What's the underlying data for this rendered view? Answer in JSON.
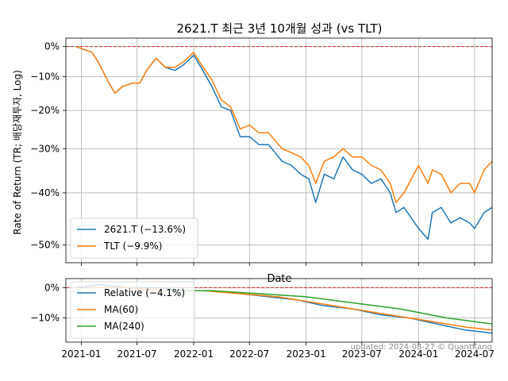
{
  "chart_data": [
    {
      "type": "line",
      "title": "2621.T 최근 3년 10개월 성과 (vs TLT)",
      "xlabel": "Date",
      "ylabel": "Rate of Return (TR; 배당재투자, Log)",
      "y_scale": "log",
      "grid": true,
      "legend": "lower-left",
      "x_range": [
        "2020-11-12",
        "2024-08-27"
      ],
      "y_tick_labels": [
        "0%",
        "−10%",
        "−20%",
        "−30%",
        "−40%",
        "−50%"
      ],
      "y_tick_values": [
        0,
        -10,
        -20,
        -30,
        -40,
        -50
      ],
      "ylim": [
        -53,
        3
      ],
      "reference_line": {
        "y": 0,
        "color": "#d62728",
        "style": "dashed"
      },
      "series": [
        {
          "name": "2621.T (−13.6%)",
          "color": "#1f77b4",
          "points": [
            [
              "2020-12-15",
              0
            ],
            [
              "2021-01-10",
              -1
            ],
            [
              "2021-02-05",
              -2
            ],
            [
              "2021-03-01",
              -6
            ],
            [
              "2021-04-01",
              -12
            ],
            [
              "2021-04-20",
              -15
            ],
            [
              "2021-05-15",
              -13
            ],
            [
              "2021-06-15",
              -12
            ],
            [
              "2021-07-10",
              -12
            ],
            [
              "2021-08-01",
              -8
            ],
            [
              "2021-09-01",
              -4
            ],
            [
              "2021-10-01",
              -7
            ],
            [
              "2021-11-01",
              -8
            ],
            [
              "2021-12-01",
              -6
            ],
            [
              "2022-01-01",
              -3
            ],
            [
              "2022-01-25",
              -7
            ],
            [
              "2022-03-01",
              -13
            ],
            [
              "2022-04-01",
              -19
            ],
            [
              "2022-05-01",
              -20
            ],
            [
              "2022-06-01",
              -27
            ],
            [
              "2022-07-01",
              -27
            ],
            [
              "2022-08-01",
              -29
            ],
            [
              "2022-09-01",
              -29
            ],
            [
              "2022-10-15",
              -33
            ],
            [
              "2022-11-15",
              -34
            ],
            [
              "2022-12-15",
              -36
            ],
            [
              "2023-01-10",
              -37
            ],
            [
              "2023-02-01",
              -42
            ],
            [
              "2023-03-01",
              -36
            ],
            [
              "2023-04-01",
              -37
            ],
            [
              "2023-05-01",
              -32
            ],
            [
              "2023-06-01",
              -35
            ],
            [
              "2023-07-01",
              -36
            ],
            [
              "2023-08-01",
              -38
            ],
            [
              "2023-09-01",
              -37
            ],
            [
              "2023-10-01",
              -40
            ],
            [
              "2023-10-20",
              -44
            ],
            [
              "2023-11-15",
              -43
            ],
            [
              "2024-01-01",
              -47
            ],
            [
              "2024-02-01",
              -49
            ],
            [
              "2024-02-15",
              -44
            ],
            [
              "2024-03-15",
              -43
            ],
            [
              "2024-04-15",
              -46
            ],
            [
              "2024-05-15",
              -45
            ],
            [
              "2024-06-15",
              -46
            ],
            [
              "2024-07-01",
              -47
            ],
            [
              "2024-08-01",
              -44
            ],
            [
              "2024-08-27",
              -43
            ]
          ]
        },
        {
          "name": "TLT (−9.9%)",
          "color": "#ff7f0e",
          "points": [
            [
              "2020-12-15",
              0
            ],
            [
              "2021-01-10",
              -1
            ],
            [
              "2021-02-05",
              -2
            ],
            [
              "2021-03-01",
              -6
            ],
            [
              "2021-04-01",
              -12
            ],
            [
              "2021-04-20",
              -15
            ],
            [
              "2021-05-15",
              -13
            ],
            [
              "2021-06-15",
              -12
            ],
            [
              "2021-07-10",
              -12
            ],
            [
              "2021-08-01",
              -8
            ],
            [
              "2021-09-01",
              -4
            ],
            [
              "2021-10-01",
              -7
            ],
            [
              "2021-11-01",
              -7
            ],
            [
              "2021-12-01",
              -5
            ],
            [
              "2022-01-01",
              -2
            ],
            [
              "2022-01-25",
              -6
            ],
            [
              "2022-03-01",
              -11
            ],
            [
              "2022-04-01",
              -17
            ],
            [
              "2022-05-01",
              -19
            ],
            [
              "2022-06-01",
              -25
            ],
            [
              "2022-07-01",
              -24
            ],
            [
              "2022-08-01",
              -26
            ],
            [
              "2022-09-01",
              -26
            ],
            [
              "2022-10-15",
              -30
            ],
            [
              "2022-11-15",
              -31
            ],
            [
              "2022-12-15",
              -32
            ],
            [
              "2023-01-10",
              -34
            ],
            [
              "2023-02-01",
              -38
            ],
            [
              "2023-03-01",
              -33
            ],
            [
              "2023-04-01",
              -32
            ],
            [
              "2023-05-01",
              -30
            ],
            [
              "2023-06-01",
              -32
            ],
            [
              "2023-07-01",
              -32
            ],
            [
              "2023-08-01",
              -34
            ],
            [
              "2023-09-01",
              -35
            ],
            [
              "2023-10-01",
              -38
            ],
            [
              "2023-10-20",
              -42
            ],
            [
              "2023-11-15",
              -40
            ],
            [
              "2024-01-01",
              -34
            ],
            [
              "2024-02-01",
              -38
            ],
            [
              "2024-02-15",
              -35
            ],
            [
              "2024-03-15",
              -36
            ],
            [
              "2024-04-15",
              -40
            ],
            [
              "2024-05-15",
              -38
            ],
            [
              "2024-06-15",
              -38
            ],
            [
              "2024-07-01",
              -40
            ],
            [
              "2024-08-01",
              -35
            ],
            [
              "2024-08-27",
              -33
            ]
          ]
        }
      ]
    },
    {
      "type": "line",
      "xlabel": "Date",
      "grid": true,
      "legend": "upper-left",
      "x_range": [
        "2020-11-12",
        "2024-08-27"
      ],
      "x_tick_labels": [
        "2021-01",
        "2021-07",
        "2022-01",
        "2022-07",
        "2023-01",
        "2023-07",
        "2024-01",
        "2024-07"
      ],
      "x_tick_values": [
        "2021-01-01",
        "2021-07-01",
        "2022-01-01",
        "2022-07-01",
        "2023-01-01",
        "2023-07-01",
        "2024-01-01",
        "2024-07-01"
      ],
      "y_tick_labels": [
        "0%",
        "−10%"
      ],
      "y_tick_values": [
        0,
        -10
      ],
      "ylim": [
        -18,
        3
      ],
      "reference_line": {
        "y": 0,
        "color": "#d62728",
        "style": "dashed"
      },
      "series": [
        {
          "name": "Relative (−4.1%)",
          "color": "#1f77b4",
          "points": [
            [
              "2020-12-15",
              0
            ],
            [
              "2021-03-01",
              1
            ],
            [
              "2021-06-01",
              0
            ],
            [
              "2021-09-01",
              0
            ],
            [
              "2021-12-01",
              -1
            ],
            [
              "2022-03-01",
              -1
            ],
            [
              "2022-06-01",
              -2
            ],
            [
              "2022-09-01",
              -3
            ],
            [
              "2022-12-01",
              -4
            ],
            [
              "2023-03-01",
              -6
            ],
            [
              "2023-06-01",
              -7
            ],
            [
              "2023-09-01",
              -9
            ],
            [
              "2023-12-01",
              -10
            ],
            [
              "2024-03-01",
              -12
            ],
            [
              "2024-06-01",
              -14
            ],
            [
              "2024-08-27",
              -15
            ]
          ]
        },
        {
          "name": "MA(60)",
          "color": "#ff7f0e",
          "points": [
            [
              "2021-02-01",
              0
            ],
            [
              "2021-06-01",
              0
            ],
            [
              "2021-10-01",
              -1
            ],
            [
              "2022-02-01",
              -1
            ],
            [
              "2022-06-01",
              -2
            ],
            [
              "2022-10-01",
              -3
            ],
            [
              "2023-02-01",
              -5
            ],
            [
              "2023-06-01",
              -7
            ],
            [
              "2023-10-01",
              -9
            ],
            [
              "2024-02-01",
              -11
            ],
            [
              "2024-06-01",
              -13
            ],
            [
              "2024-08-27",
              -14
            ]
          ]
        },
        {
          "name": "MA(240)",
          "color": "#2ca02c",
          "points": [
            [
              "2021-10-01",
              -1
            ],
            [
              "2022-03-01",
              -1
            ],
            [
              "2022-08-01",
              -2
            ],
            [
              "2023-01-01",
              -3
            ],
            [
              "2023-06-01",
              -5
            ],
            [
              "2023-11-01",
              -7
            ],
            [
              "2024-04-01",
              -10
            ],
            [
              "2024-08-27",
              -12
            ]
          ]
        }
      ]
    }
  ],
  "watermark": "updated: 2024-08-27 © QuantKang"
}
